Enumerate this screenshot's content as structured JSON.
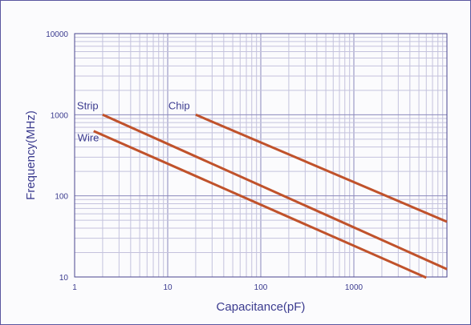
{
  "chart_data": {
    "type": "line",
    "title": "",
    "xlabel": "Capacitance(pF)",
    "ylabel": "Frequency(MHz)",
    "x_scale": "log",
    "y_scale": "log",
    "xlim": [
      1,
      10000
    ],
    "ylim": [
      10,
      10000
    ],
    "x_ticks": [
      {
        "value": 1,
        "label": "1"
      },
      {
        "value": 10,
        "label": "10"
      },
      {
        "value": 100,
        "label": "100"
      },
      {
        "value": 1000,
        "label": "1000"
      }
    ],
    "y_ticks": [
      {
        "value": 10,
        "label": "10"
      },
      {
        "value": 100,
        "label": "100"
      },
      {
        "value": 1000,
        "label": "1000"
      },
      {
        "value": 10000,
        "label": "10000"
      }
    ],
    "grid": true,
    "line_color": "#c0522b",
    "series": [
      {
        "name": "Strip",
        "x": [
          2,
          10000
        ],
        "y": [
          1000,
          12.5
        ]
      },
      {
        "name": "Wire",
        "x": [
          1.6,
          6000
        ],
        "y": [
          630,
          9.8
        ]
      },
      {
        "name": "Chip",
        "x": [
          20,
          10000
        ],
        "y": [
          1000,
          48
        ]
      }
    ]
  }
}
